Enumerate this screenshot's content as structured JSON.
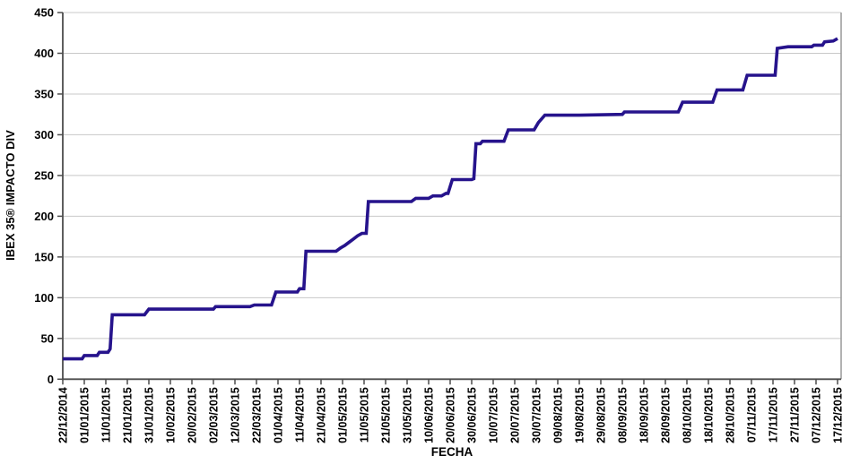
{
  "chart_data": {
    "type": "line",
    "title": "",
    "xlabel": "FECHA",
    "ylabel": "IBEX 35® IMPACTO DIV",
    "ylim": [
      0,
      450
    ],
    "y_tick_step": 50,
    "y_tick_labels": [
      "0",
      "50",
      "100",
      "150",
      "200",
      "250",
      "300",
      "350",
      "400",
      "450"
    ],
    "x_tick_labels": [
      "22/12/2014",
      "01/01/2015",
      "11/01/2015",
      "21/01/2015",
      "31/01/2015",
      "10/02/2015",
      "20/02/2015",
      "02/03/2015",
      "12/03/2015",
      "22/03/2015",
      "01/04/2015",
      "11/04/2015",
      "21/04/2015",
      "01/05/2015",
      "11/05/2015",
      "21/05/2015",
      "31/05/2015",
      "10/06/2015",
      "20/06/2015",
      "30/06/2015",
      "10/07/2015",
      "20/07/2015",
      "30/07/2015",
      "09/08/2015",
      "19/08/2015",
      "29/08/2015",
      "08/09/2015",
      "18/09/2015",
      "28/09/2015",
      "08/10/2015",
      "18/10/2015",
      "28/10/2015",
      "07/11/2015",
      "17/11/2015",
      "27/11/2015",
      "07/12/2015",
      "17/12/2015"
    ],
    "grid": "horizontal",
    "legend": "none",
    "series": [
      {
        "color": "#26138C",
        "points": [
          [
            "22/12/2014",
            25
          ],
          [
            "31/12/2014",
            25
          ],
          [
            "01/01/2015",
            29
          ],
          [
            "07/01/2015",
            29
          ],
          [
            "08/01/2015",
            33
          ],
          [
            "12/01/2015",
            33
          ],
          [
            "13/01/2015",
            37
          ],
          [
            "14/01/2015",
            79
          ],
          [
            "29/01/2015",
            79
          ],
          [
            "31/01/2015",
            86
          ],
          [
            "02/03/2015",
            86
          ],
          [
            "03/03/2015",
            89
          ],
          [
            "19/03/2015",
            89
          ],
          [
            "21/03/2015",
            91
          ],
          [
            "29/03/2015",
            91
          ],
          [
            "31/03/2015",
            107
          ],
          [
            "10/04/2015",
            107
          ],
          [
            "11/04/2015",
            111
          ],
          [
            "13/04/2015",
            111
          ],
          [
            "14/04/2015",
            157
          ],
          [
            "28/04/2015",
            157
          ],
          [
            "30/04/2015",
            161
          ],
          [
            "02/05/2015",
            164
          ],
          [
            "04/05/2015",
            168
          ],
          [
            "06/05/2015",
            172
          ],
          [
            "08/05/2015",
            176
          ],
          [
            "10/05/2015",
            179
          ],
          [
            "12/05/2015",
            179
          ],
          [
            "13/05/2015",
            218
          ],
          [
            "02/06/2015",
            218
          ],
          [
            "04/06/2015",
            222
          ],
          [
            "10/06/2015",
            222
          ],
          [
            "12/06/2015",
            225
          ],
          [
            "16/06/2015",
            225
          ],
          [
            "18/06/2015",
            228
          ],
          [
            "19/06/2015",
            228
          ],
          [
            "21/06/2015",
            245
          ],
          [
            "30/06/2015",
            245
          ],
          [
            "01/07/2015",
            246
          ],
          [
            "02/07/2015",
            289
          ],
          [
            "04/07/2015",
            289
          ],
          [
            "05/07/2015",
            292
          ],
          [
            "15/07/2015",
            292
          ],
          [
            "17/07/2015",
            306
          ],
          [
            "29/07/2015",
            306
          ],
          [
            "31/07/2015",
            315
          ],
          [
            "03/08/2015",
            324
          ],
          [
            "19/08/2015",
            324
          ],
          [
            "08/09/2015",
            325
          ],
          [
            "09/09/2015",
            328
          ],
          [
            "04/10/2015",
            328
          ],
          [
            "06/10/2015",
            340
          ],
          [
            "20/10/2015",
            340
          ],
          [
            "22/10/2015",
            355
          ],
          [
            "03/11/2015",
            355
          ],
          [
            "05/11/2015",
            373
          ],
          [
            "18/11/2015",
            373
          ],
          [
            "19/11/2015",
            406
          ],
          [
            "24/11/2015",
            408
          ],
          [
            "05/12/2015",
            408
          ],
          [
            "06/12/2015",
            410
          ],
          [
            "10/12/2015",
            410
          ],
          [
            "11/12/2015",
            414
          ],
          [
            "15/12/2015",
            415
          ],
          [
            "17/12/2015",
            418
          ]
        ]
      }
    ],
    "colors": {
      "line": "#26138C",
      "gridline": "#C8C8C8",
      "axis": "#4D4D4D",
      "plot_border_right": "#999999",
      "text": "#000000",
      "background": "#FFFFFF"
    }
  }
}
